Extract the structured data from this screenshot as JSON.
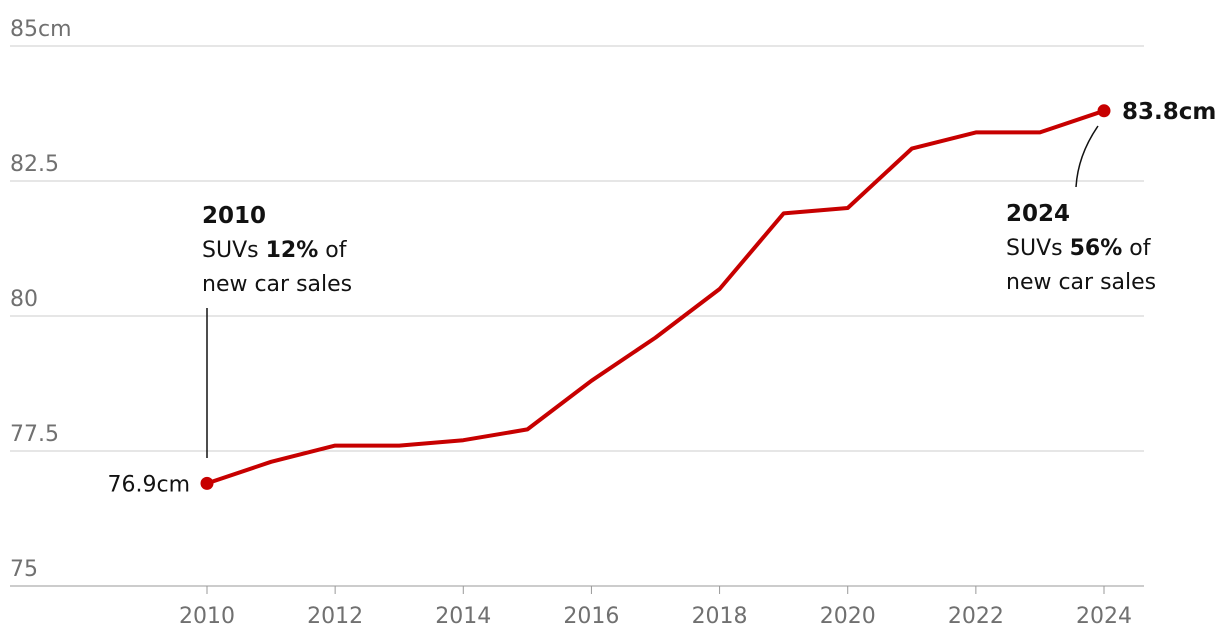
{
  "chart_data": {
    "type": "line",
    "title": "",
    "xlabel": "",
    "ylabel": "",
    "unit": "cm",
    "x": [
      2010,
      2011,
      2012,
      2013,
      2014,
      2015,
      2016,
      2017,
      2018,
      2019,
      2020,
      2021,
      2022,
      2023,
      2024
    ],
    "series": [
      {
        "values": [
          76.9,
          77.3,
          77.6,
          77.6,
          77.7,
          77.9,
          78.8,
          79.6,
          80.5,
          81.9,
          82.0,
          83.1,
          83.4,
          83.4,
          83.8
        ]
      }
    ],
    "xlim": [
      2007.5,
      2024.8
    ],
    "ylim": [
      75,
      85
    ],
    "x_ticks": [
      "2010",
      "2012",
      "2014",
      "2016",
      "2018",
      "2020",
      "2022",
      "2024"
    ],
    "y_ticks": [
      "75",
      "77.5",
      "80",
      "82.5",
      "85cm"
    ],
    "grid": "horizontal",
    "line_color": "#c70000",
    "start_label": "76.9cm",
    "end_label": "83.8cm",
    "annotations": [
      {
        "year": 2010,
        "title": "2010",
        "line1_pre": "SUVs ",
        "line1_bold": "12%",
        "line1_post": " of",
        "line2": "new car sales"
      },
      {
        "year": 2024,
        "title": "2024",
        "line1_pre": "SUVs ",
        "line1_bold": "56%",
        "line1_post": " of",
        "line2": "new car sales"
      }
    ]
  }
}
